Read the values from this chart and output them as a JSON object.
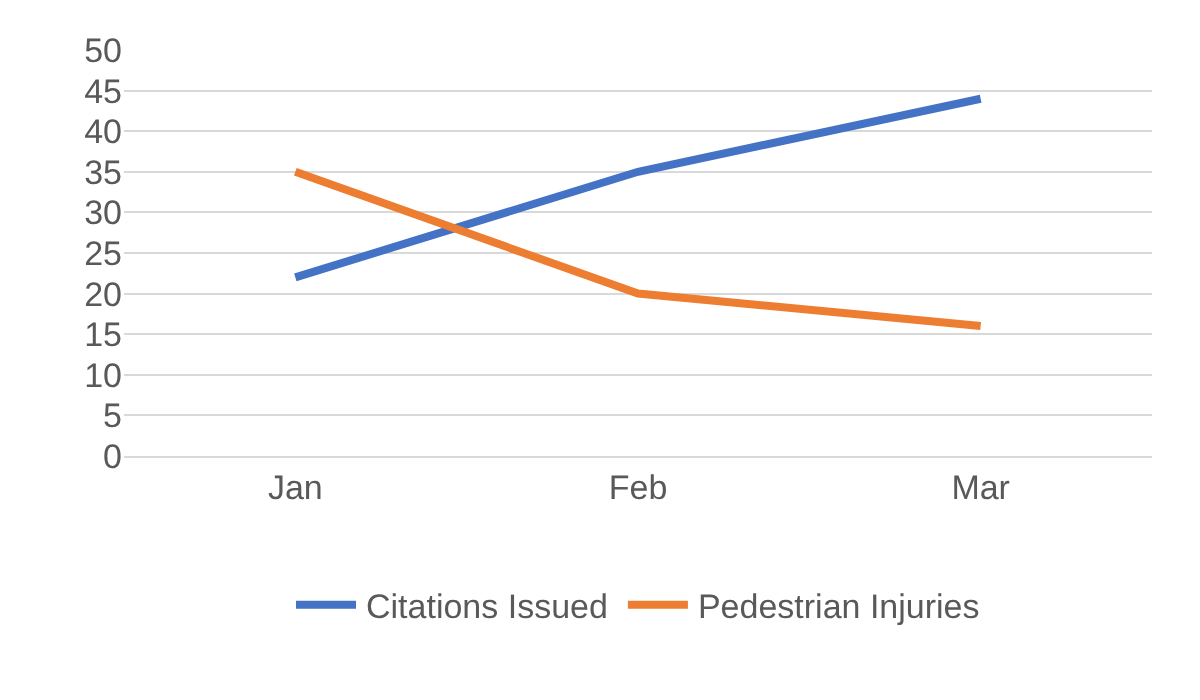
{
  "chart_data": {
    "type": "line",
    "categories": [
      "Jan",
      "Feb",
      "Mar"
    ],
    "series": [
      {
        "name": "Citations Issued",
        "color": "#4472c4",
        "values": [
          22,
          35,
          44
        ]
      },
      {
        "name": "Pedestrian Injuries",
        "color": "#ed7d31",
        "values": [
          35,
          20,
          16
        ]
      }
    ],
    "ylim": [
      0,
      50
    ],
    "yticks": [
      0,
      5,
      10,
      15,
      20,
      25,
      30,
      35,
      40,
      45,
      50
    ],
    "grid": "y",
    "legend": "bottom",
    "marker": "none",
    "line_style": "solid"
  }
}
